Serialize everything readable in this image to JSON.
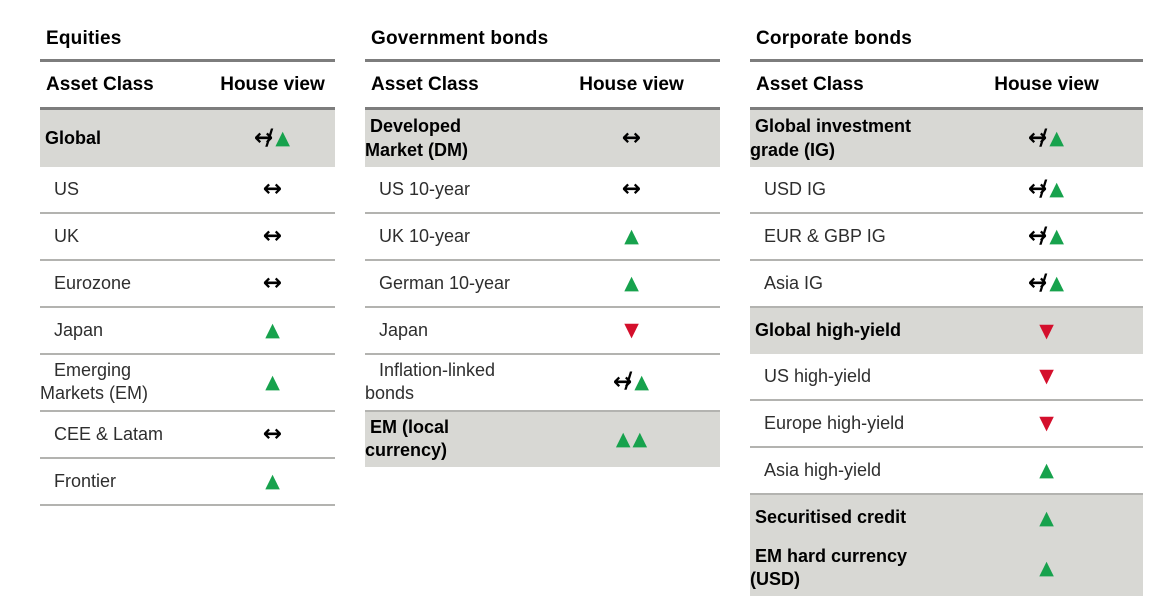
{
  "tables": [
    {
      "title": "Equities",
      "columns": {
        "asset": "Asset Class",
        "view": "House view"
      },
      "rows": [
        {
          "label": "Global",
          "view": "neutral-up",
          "highlight": true
        },
        {
          "label": "US",
          "view": "neutral",
          "highlight": false
        },
        {
          "label": "UK",
          "view": "neutral",
          "highlight": false
        },
        {
          "label": "Eurozone",
          "view": "neutral",
          "highlight": false
        },
        {
          "label": "Japan",
          "view": "up",
          "highlight": false
        },
        {
          "label": "Emerging\nMarkets (EM)",
          "view": "up",
          "highlight": false
        },
        {
          "label": "CEE & Latam",
          "view": "neutral",
          "highlight": false
        },
        {
          "label": "Frontier",
          "view": "up",
          "highlight": false
        }
      ]
    },
    {
      "title": "Government bonds",
      "columns": {
        "asset": "Asset Class",
        "view": "House view"
      },
      "rows": [
        {
          "label": "Developed\nMarket (DM)",
          "view": "neutral",
          "highlight": true
        },
        {
          "label": "US 10-year",
          "view": "neutral",
          "highlight": false
        },
        {
          "label": "UK 10-year",
          "view": "up",
          "highlight": false
        },
        {
          "label": "German 10-year",
          "view": "up",
          "highlight": false
        },
        {
          "label": "Japan",
          "view": "down",
          "highlight": false
        },
        {
          "label": "Inflation-linked\nbonds",
          "view": "neutral-up",
          "highlight": false
        },
        {
          "label": "EM (local\ncurrency)",
          "view": "up-up",
          "highlight": true
        }
      ]
    },
    {
      "title": "Corporate bonds",
      "columns": {
        "asset": "Asset Class",
        "view": "House view"
      },
      "rows": [
        {
          "label": "Global investment\ngrade (IG)",
          "view": "neutral-up",
          "highlight": true
        },
        {
          "label": "USD IG",
          "view": "neutral-up",
          "highlight": false
        },
        {
          "label": "EUR & GBP IG",
          "view": "neutral-up",
          "highlight": false
        },
        {
          "label": "Asia IG",
          "view": "neutral-up",
          "highlight": false
        },
        {
          "label": "Global high-yield",
          "view": "down",
          "highlight": true
        },
        {
          "label": "US high-yield",
          "view": "down",
          "highlight": false
        },
        {
          "label": "Europe high-yield",
          "view": "down",
          "highlight": false
        },
        {
          "label": "Asia high-yield",
          "view": "up",
          "highlight": false
        },
        {
          "label": "Securitised credit",
          "view": "up",
          "highlight": true
        },
        {
          "label": "EM hard currency\n(USD)",
          "view": "up",
          "highlight": true
        }
      ]
    }
  ],
  "symbols": {
    "neutral": "↔",
    "slash": "/",
    "up": "▲",
    "down": "▼"
  },
  "colors": {
    "positive": "#17a24d",
    "negative": "#d40f2c",
    "highlight_bg": "#d8d8d4"
  }
}
